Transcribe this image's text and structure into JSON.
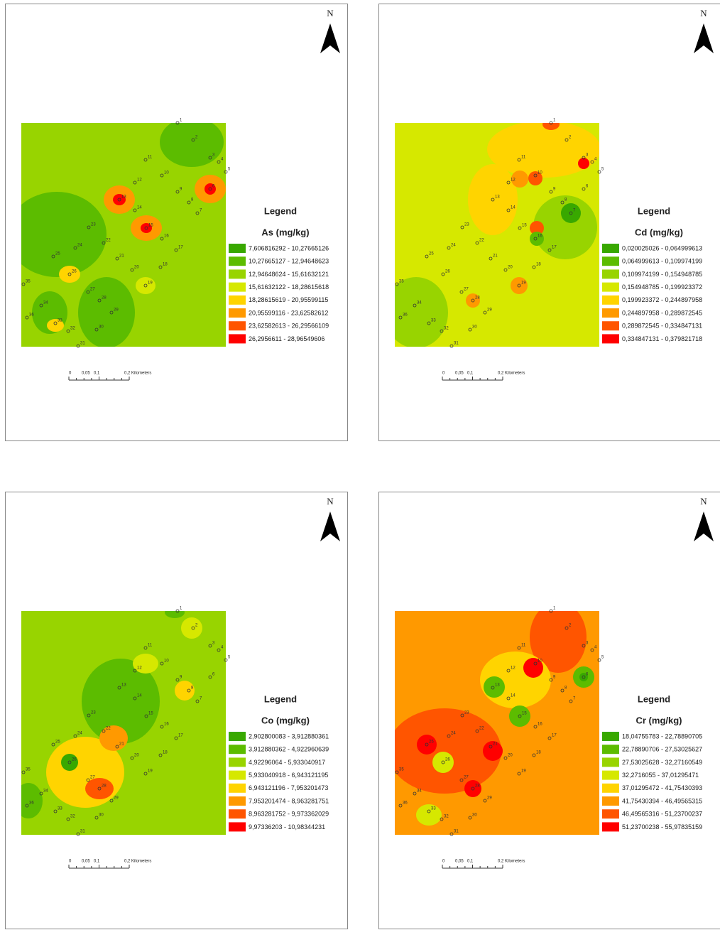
{
  "panels": [
    {
      "legend_title": "Legend",
      "variable": "As (mg/kg)",
      "classes": [
        "7,606816292 - 10,27665126",
        "10,27665127 - 12,94648623",
        "12,94648624 - 15,61632121",
        "15,61632122 - 18,28615618",
        "18,28615619 - 20,95599115",
        "20,95599116 - 23,62582612",
        "23,62582613 - 26,29566109",
        "26,2956611 - 28,96549606"
      ],
      "north": "N",
      "scale_labels": [
        "0",
        "0,05",
        "0,1",
        "0,2 Kilometers"
      ]
    },
    {
      "legend_title": "Legend",
      "variable": "Cd (mg/kg)",
      "classes": [
        "0,020025026 - 0,064999613",
        "0,064999613 - 0,109974199",
        "0,109974199 - 0,154948785",
        "0,154948785 - 0,199923372",
        "0,199923372 - 0,244897958",
        "0,244897958 - 0,289872545",
        "0,289872545 - 0,334847131",
        "0,334847131 - 0,379821718"
      ],
      "north": "N",
      "scale_labels": [
        "0",
        "0,05",
        "0,1",
        "0,2 Kilometers"
      ]
    },
    {
      "legend_title": "Legend",
      "variable": "Co (mg/kg)",
      "classes": [
        "2,902800083 - 3,912880361",
        "3,912880362 - 4,922960639",
        "4,92296064 - 5,933040917",
        "5,933040918 - 6,943121195",
        "6,943121196 - 7,953201473",
        "7,953201474 - 8,963281751",
        "8,963281752 - 9,973362029",
        "9,97336203 - 10,98344231"
      ],
      "north": "N",
      "scale_labels": [
        "0",
        "0,05",
        "0,1",
        "0,2 Kilometers"
      ]
    },
    {
      "legend_title": "Legend",
      "variable": "Cr (mg/kg)",
      "classes": [
        "18,04755783 - 22,78890705",
        "22,78890706 - 27,53025627",
        "27,53025628 - 32,27160549",
        "32,2716055 - 37,01295471",
        "37,01295472 - 41,75430393",
        "41,75430394 - 46,49565315",
        "46,49565316 - 51,23700237",
        "51,23700238 - 55,97835159"
      ],
      "north": "N",
      "scale_labels": [
        "0",
        "0,05",
        "0,1",
        "0,2 Kilometers"
      ]
    }
  ],
  "sample_points": [
    "1",
    "2",
    "3",
    "4",
    "5",
    "6",
    "7",
    "8",
    "9",
    "10",
    "11",
    "12",
    "13",
    "14",
    "15",
    "16",
    "17",
    "18",
    "19",
    "20",
    "21",
    "22",
    "23",
    "24",
    "25",
    "26",
    "27",
    "28",
    "29",
    "30",
    "31",
    "32",
    "33",
    "34",
    "35",
    "36"
  ],
  "class_colors": [
    "#38a800",
    "#5cbc00",
    "#98d400",
    "#d6e800",
    "#ffd400",
    "#ff9900",
    "#ff5500",
    "#ff0000"
  ]
}
